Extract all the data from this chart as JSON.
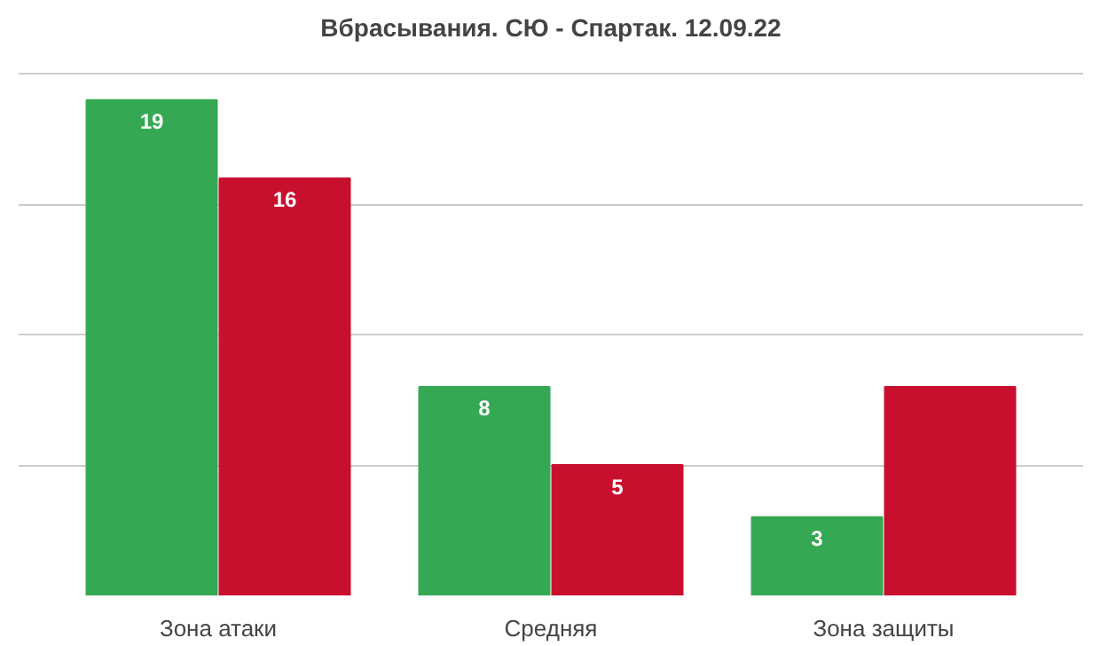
{
  "chart_data": {
    "type": "bar",
    "title": "Вбрасывания. СЮ - Спартак. 12.09.22",
    "categories": [
      "Зона атаки",
      "Средняя",
      "Зона защиты"
    ],
    "series": [
      {
        "color": "#34a853",
        "values": [
          19,
          8,
          3
        ],
        "value_labels": [
          "19",
          "8",
          "3"
        ]
      },
      {
        "color": "#c8102e",
        "values": [
          16,
          5,
          8
        ],
        "value_labels": [
          "16",
          "5",
          null
        ]
      }
    ],
    "grid": "y",
    "tick_labels": "x"
  }
}
